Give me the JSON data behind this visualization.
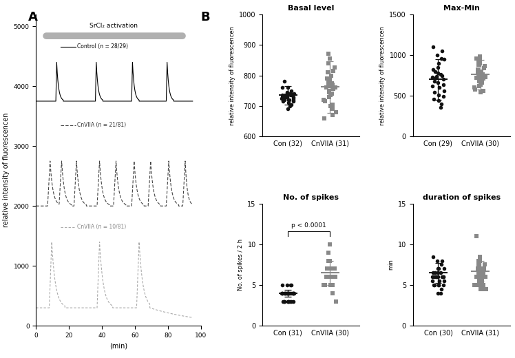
{
  "panel_A": {
    "srCl2_text": "SrCl₂ activation",
    "control_label": "Control (n = 28/29)",
    "cnVIIA_label": "CnVIIA (n = 21/81)",
    "cnVIIA2_label": "CnVIIA (n = 10/81)",
    "ylim": [
      0,
      5200
    ],
    "xlim": [
      0,
      100
    ],
    "xlabel": "(min)",
    "ylabel": "relative intensity of fluorescencen",
    "yticks": [
      0,
      1000,
      2000,
      3000,
      4000,
      5000
    ],
    "xticks": [
      0,
      20,
      40,
      60,
      80,
      100
    ],
    "ctrl_baseline": 3750,
    "ctrl_spike_times": [
      12,
      36,
      58,
      79
    ],
    "ctrl_spike_height": 650,
    "cn1_baseline": 2000,
    "cn1_spike_times": [
      7,
      14,
      23,
      37,
      47,
      58,
      68,
      79,
      89
    ],
    "cn1_spike_height": 750,
    "cn2_baseline": 300,
    "cn2_spike_times": [
      8,
      37,
      61
    ],
    "cn2_spike_height": 1100
  },
  "panel_B_basal": {
    "title": "Basal level",
    "xlabel_con": "Con (32)",
    "xlabel_cnviia": "CnVIIA (31)",
    "ylabel": "relative intensity of fluorescencen",
    "ylim": [
      600,
      1000
    ],
    "yticks": [
      600,
      700,
      800,
      900,
      1000
    ],
    "con_mean": 735,
    "con_sd": 30,
    "cnviia_mean": 762,
    "cnviia_sd": 85,
    "con_data": [
      760,
      750,
      745,
      740,
      740,
      740,
      740,
      735,
      735,
      735,
      735,
      735,
      730,
      730,
      730,
      730,
      730,
      730,
      725,
      725,
      720,
      720,
      720,
      720,
      715,
      715,
      710,
      705,
      700,
      690,
      780,
      760
    ],
    "cnviia_data": [
      870,
      855,
      840,
      825,
      815,
      810,
      800,
      790,
      785,
      780,
      775,
      775,
      770,
      770,
      765,
      760,
      760,
      755,
      750,
      745,
      740,
      735,
      730,
      720,
      715,
      705,
      700,
      690,
      680,
      670,
      660
    ],
    "con_color": "#111111",
    "cnviia_color": "#888888"
  },
  "panel_B_maxmin": {
    "title": "Max-Min",
    "xlabel_con": "Con (29)",
    "xlabel_cnviia": "CnVIIA (30)",
    "ylabel": "relative intensity of fluorescencen",
    "ylim": [
      0,
      1500
    ],
    "yticks": [
      0,
      500,
      1000,
      1500
    ],
    "con_mean": 700,
    "con_sd": 250,
    "cnviia_mean": 760,
    "cnviia_sd": 180,
    "con_data": [
      1100,
      1050,
      1000,
      960,
      950,
      900,
      850,
      820,
      800,
      780,
      760,
      750,
      740,
      730,
      720,
      700,
      680,
      660,
      640,
      620,
      600,
      560,
      540,
      510,
      490,
      460,
      440,
      400,
      360
    ],
    "cnviia_data": [
      980,
      960,
      940,
      920,
      900,
      880,
      860,
      840,
      820,
      800,
      790,
      780,
      770,
      760,
      755,
      750,
      745,
      740,
      730,
      720,
      710,
      700,
      680,
      660,
      640,
      620,
      600,
      580,
      560,
      540
    ],
    "con_color": "#111111",
    "cnviia_color": "#888888"
  },
  "panel_B_spikes": {
    "title": "No. of spikes",
    "xlabel_con": "Con (31)",
    "xlabel_cnviia": "CnVIIA (30)",
    "ylabel": "No. of spikes / 2 h",
    "ylim": [
      0,
      15
    ],
    "yticks": [
      0,
      5,
      10,
      15
    ],
    "con_mean": 4.0,
    "con_sd": 0.4,
    "cnviia_mean": 6.5,
    "cnviia_sd": 1.5,
    "pvalue_text": "p < 0.0001",
    "con_data": [
      5,
      5,
      5,
      5,
      4,
      4,
      4,
      4,
      4,
      4,
      4,
      4,
      4,
      4,
      4,
      4,
      4,
      4,
      4,
      4,
      4,
      4,
      3,
      3,
      3,
      3,
      3,
      3,
      3,
      3,
      3
    ],
    "cnviia_data": [
      10,
      9,
      8,
      8,
      7,
      7,
      7,
      7,
      7,
      7,
      7,
      7,
      7,
      7,
      7,
      6,
      6,
      6,
      6,
      6,
      6,
      6,
      6,
      6,
      5,
      5,
      5,
      5,
      4,
      3
    ],
    "con_color": "#111111",
    "cnviia_color": "#888888"
  },
  "panel_B_duration": {
    "title": "duration of spikes",
    "xlabel_con": "Con (30)",
    "xlabel_cnviia": "CnVIIA (31)",
    "ylabel": "min",
    "ylim": [
      0,
      15
    ],
    "yticks": [
      0,
      5,
      10,
      15
    ],
    "con_mean": 6.5,
    "con_sd": 1.2,
    "cnviia_mean": 6.7,
    "cnviia_sd": 1.3,
    "con_data": [
      8.5,
      8,
      8,
      7.5,
      7,
      7,
      7,
      6.5,
      6.5,
      6.5,
      6.5,
      6,
      6,
      6,
      6,
      6,
      6,
      6,
      6,
      5.5,
      5.5,
      5.5,
      5,
      5,
      5,
      5,
      5,
      4.5,
      4,
      4
    ],
    "cnviia_data": [
      11,
      8.5,
      8,
      8,
      7.5,
      7.5,
      7,
      7,
      7,
      7,
      6.5,
      6.5,
      6.5,
      6.5,
      6.5,
      6.5,
      6,
      6,
      6,
      6,
      5.5,
      5.5,
      5.5,
      5.5,
      5,
      5,
      5,
      5,
      4.5,
      4.5,
      4.5
    ],
    "con_color": "#111111",
    "cnviia_color": "#888888"
  }
}
